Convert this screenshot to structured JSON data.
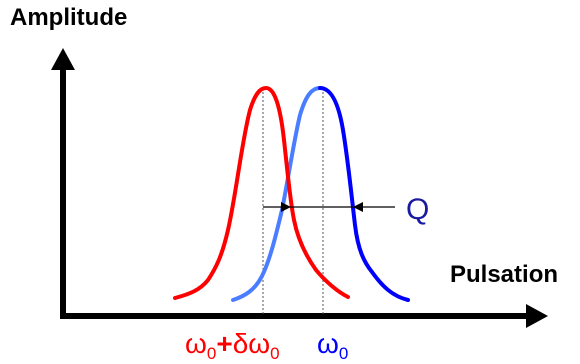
{
  "y_axis_label": "Amplitude",
  "x_axis_label": "Pulsation",
  "annotation_label": "Q",
  "shifted_peak_label": {
    "omega": "ω",
    "sub0": "0",
    "plus": "+",
    "delta": "δ",
    "omega2": "ω",
    "sub0b": "0"
  },
  "base_peak_label": {
    "omega": "ω",
    "sub0": "0"
  },
  "colors": {
    "axis": "#000000",
    "shifted_curve": "#ff0000",
    "base_curve": "#0000ff",
    "base_curve_overlap": "#4a7dff",
    "annotation": "#1a1aa0",
    "guide": "#555555"
  }
}
